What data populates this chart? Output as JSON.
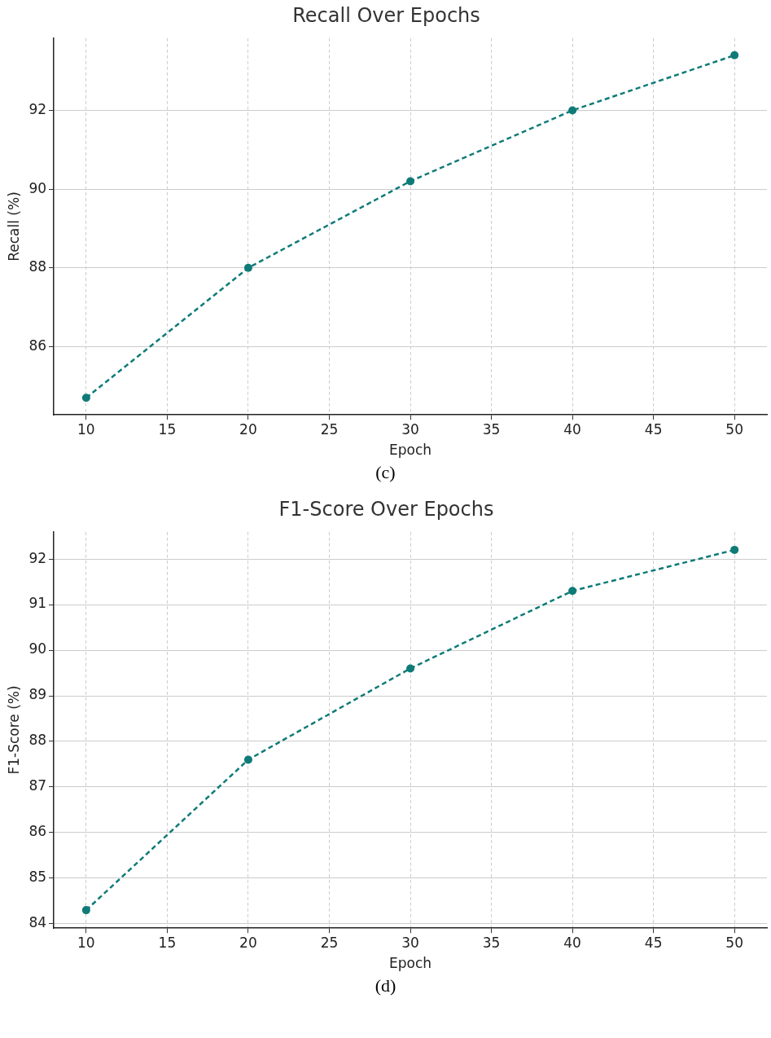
{
  "chart_data": [
    {
      "type": "line",
      "title": "Recall Over Epochs",
      "xlabel": "Epoch",
      "ylabel": "Recall (%)",
      "x": [
        10,
        20,
        30,
        40,
        50
      ],
      "series": [
        {
          "color": "#0f7b78",
          "values": [
            84.7,
            88.0,
            90.2,
            92.0,
            93.4
          ]
        }
      ],
      "xlim": [
        8,
        52
      ],
      "xticks": [
        10,
        15,
        20,
        25,
        30,
        35,
        40,
        45,
        50
      ],
      "ylim": [
        84.265,
        93.835
      ],
      "yticks": [
        86,
        88,
        90,
        92
      ],
      "grid": true,
      "legend": false,
      "marker": "circle",
      "line_style": "dashed",
      "annotations": [
        "(c)"
      ]
    },
    {
      "type": "line",
      "title": "F1-Score Over Epochs",
      "xlabel": "Epoch",
      "ylabel": "F1-Score (%)",
      "x": [
        10,
        20,
        30,
        40,
        50
      ],
      "series": [
        {
          "color": "#0f7b78",
          "values": [
            84.3,
            87.6,
            89.6,
            91.3,
            92.2
          ]
        }
      ],
      "xlim": [
        8,
        52
      ],
      "xticks": [
        10,
        15,
        20,
        25,
        30,
        35,
        40,
        45,
        50
      ],
      "ylim": [
        83.905,
        92.595
      ],
      "yticks": [
        84,
        85,
        86,
        87,
        88,
        89,
        90,
        91,
        92
      ],
      "grid": true,
      "legend": false,
      "marker": "circle",
      "line_style": "dashed",
      "annotations": [
        "(d)"
      ]
    }
  ]
}
